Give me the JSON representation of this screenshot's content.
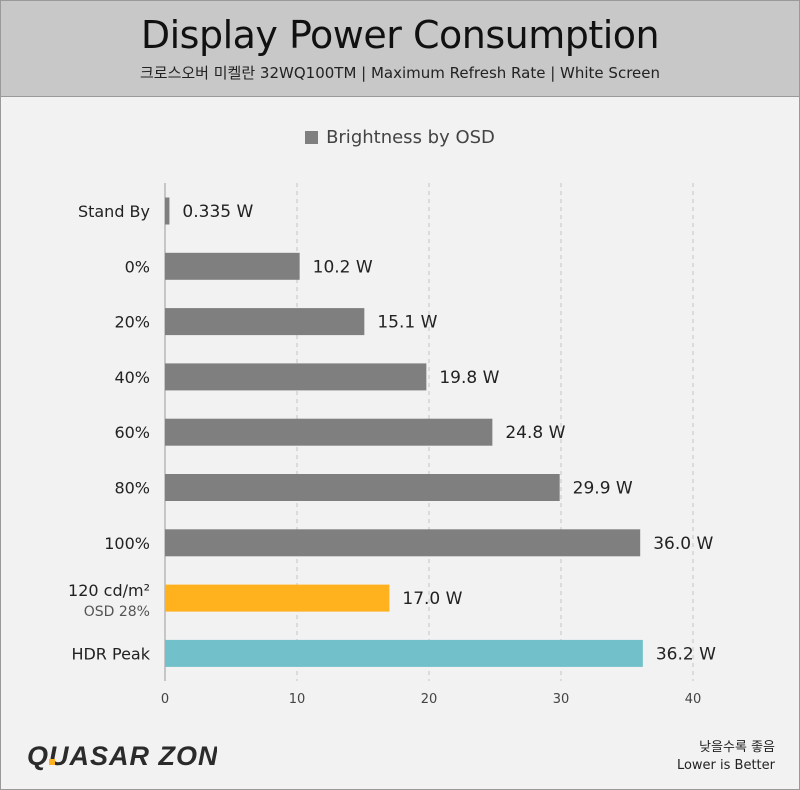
{
  "header": {
    "title": "Display Power Consumption",
    "subtitle": "크로스오버 미켈란 32WQ100TM  |  Maximum Refresh Rate  |  White Screen"
  },
  "footer": {
    "logo_text": "QUASAR ZONE",
    "note_line1": "낮을수록 좋음",
    "note_line2": "Lower is Better"
  },
  "colors": {
    "default_bar": "#7f7f7f",
    "highlight_bar": "#ffb11e",
    "hdr_bar": "#72c0c9",
    "grid": "#c4c4c4"
  },
  "chart_data": {
    "type": "bar",
    "orientation": "horizontal",
    "title": "Display Power Consumption",
    "legend": [
      "Brightness by OSD"
    ],
    "legend_position": "top-center",
    "grid": true,
    "xlim": [
      0,
      40
    ],
    "xticks": [
      0,
      10,
      20,
      30,
      40
    ],
    "unit": "W",
    "categories": [
      {
        "label": "Stand By",
        "value": 0.335,
        "value_label": "0.335 W",
        "color": "#7f7f7f"
      },
      {
        "label": "0%",
        "value": 10.2,
        "value_label": "10.2 W",
        "color": "#7f7f7f"
      },
      {
        "label": "20%",
        "value": 15.1,
        "value_label": "15.1 W",
        "color": "#7f7f7f"
      },
      {
        "label": "40%",
        "value": 19.8,
        "value_label": "19.8 W",
        "color": "#7f7f7f"
      },
      {
        "label": "60%",
        "value": 24.8,
        "value_label": "24.8 W",
        "color": "#7f7f7f"
      },
      {
        "label": "80%",
        "value": 29.9,
        "value_label": "29.9 W",
        "color": "#7f7f7f"
      },
      {
        "label": "100%",
        "value": 36.0,
        "value_label": "36.0 W",
        "color": "#7f7f7f"
      },
      {
        "label": "120 cd/m²",
        "sublabel": "OSD 28%",
        "value": 17.0,
        "value_label": "17.0 W",
        "color": "#ffb11e"
      },
      {
        "label": "HDR Peak",
        "value": 36.2,
        "value_label": "36.2 W",
        "color": "#72c0c9"
      }
    ]
  }
}
